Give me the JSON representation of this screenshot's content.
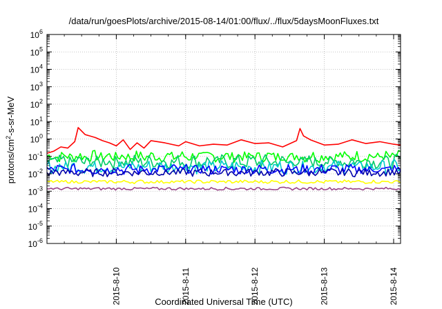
{
  "chart_data": {
    "type": "line",
    "title": "/data/run/goesPlots/archive/2015-08-14/01:00/flux/../flux/5daysMoonFluxes.txt",
    "xlabel": "Coordinated Universal Time (UTC)",
    "ylabel": "protons/cm",
    "ylabel_sup": "2",
    "ylabel_tail": "-s-sr-MeV",
    "yscale": "log",
    "ylim_exp": [
      -6,
      6
    ],
    "x_ticks": [
      "2015-8-10",
      "2015-8-11",
      "2015-8-12",
      "2015-8-13",
      "2015-8-14"
    ],
    "x_range_days": [
      9.0,
      14.1
    ],
    "grid": true,
    "legend": "none",
    "series": [
      {
        "color": "#ff0000",
        "x": [
          9.0,
          9.1,
          9.2,
          9.3,
          9.4,
          9.45,
          9.55,
          9.7,
          9.8,
          9.9,
          10.0,
          10.1,
          10.2,
          10.3,
          10.4,
          10.5,
          10.7,
          10.9,
          11.0,
          11.2,
          11.4,
          11.6,
          11.8,
          12.0,
          12.2,
          12.4,
          12.6,
          12.65,
          12.7,
          12.8,
          13.0,
          13.2,
          13.4,
          13.6,
          13.8,
          14.0,
          14.1
        ],
        "values": [
          0.15,
          0.2,
          0.35,
          0.3,
          0.7,
          4.5,
          1.8,
          1.2,
          0.8,
          0.6,
          0.4,
          0.9,
          0.25,
          0.6,
          0.3,
          0.8,
          0.6,
          0.4,
          0.7,
          0.4,
          0.5,
          0.45,
          0.9,
          0.55,
          0.6,
          0.35,
          0.8,
          4,
          1.5,
          0.9,
          0.45,
          0.5,
          0.9,
          0.55,
          0.7,
          0.5,
          0.45
        ]
      },
      {
        "color": "#00ff00",
        "base": 0.1,
        "amp": 0.5
      },
      {
        "color": "#00cc66",
        "base": 0.05,
        "amp": 0.6
      },
      {
        "color": "#00cccc",
        "base": 0.025,
        "amp": 0.6
      },
      {
        "color": "#0000ff",
        "base": 0.018,
        "amp": 0.45
      },
      {
        "color": "#0000aa",
        "base": 0.012,
        "amp": 0.35
      },
      {
        "color": "#ffff00",
        "base": 0.0035,
        "amp": 0.15
      },
      {
        "color": "#994488",
        "base": 0.0014,
        "amp": 0.12
      }
    ]
  }
}
